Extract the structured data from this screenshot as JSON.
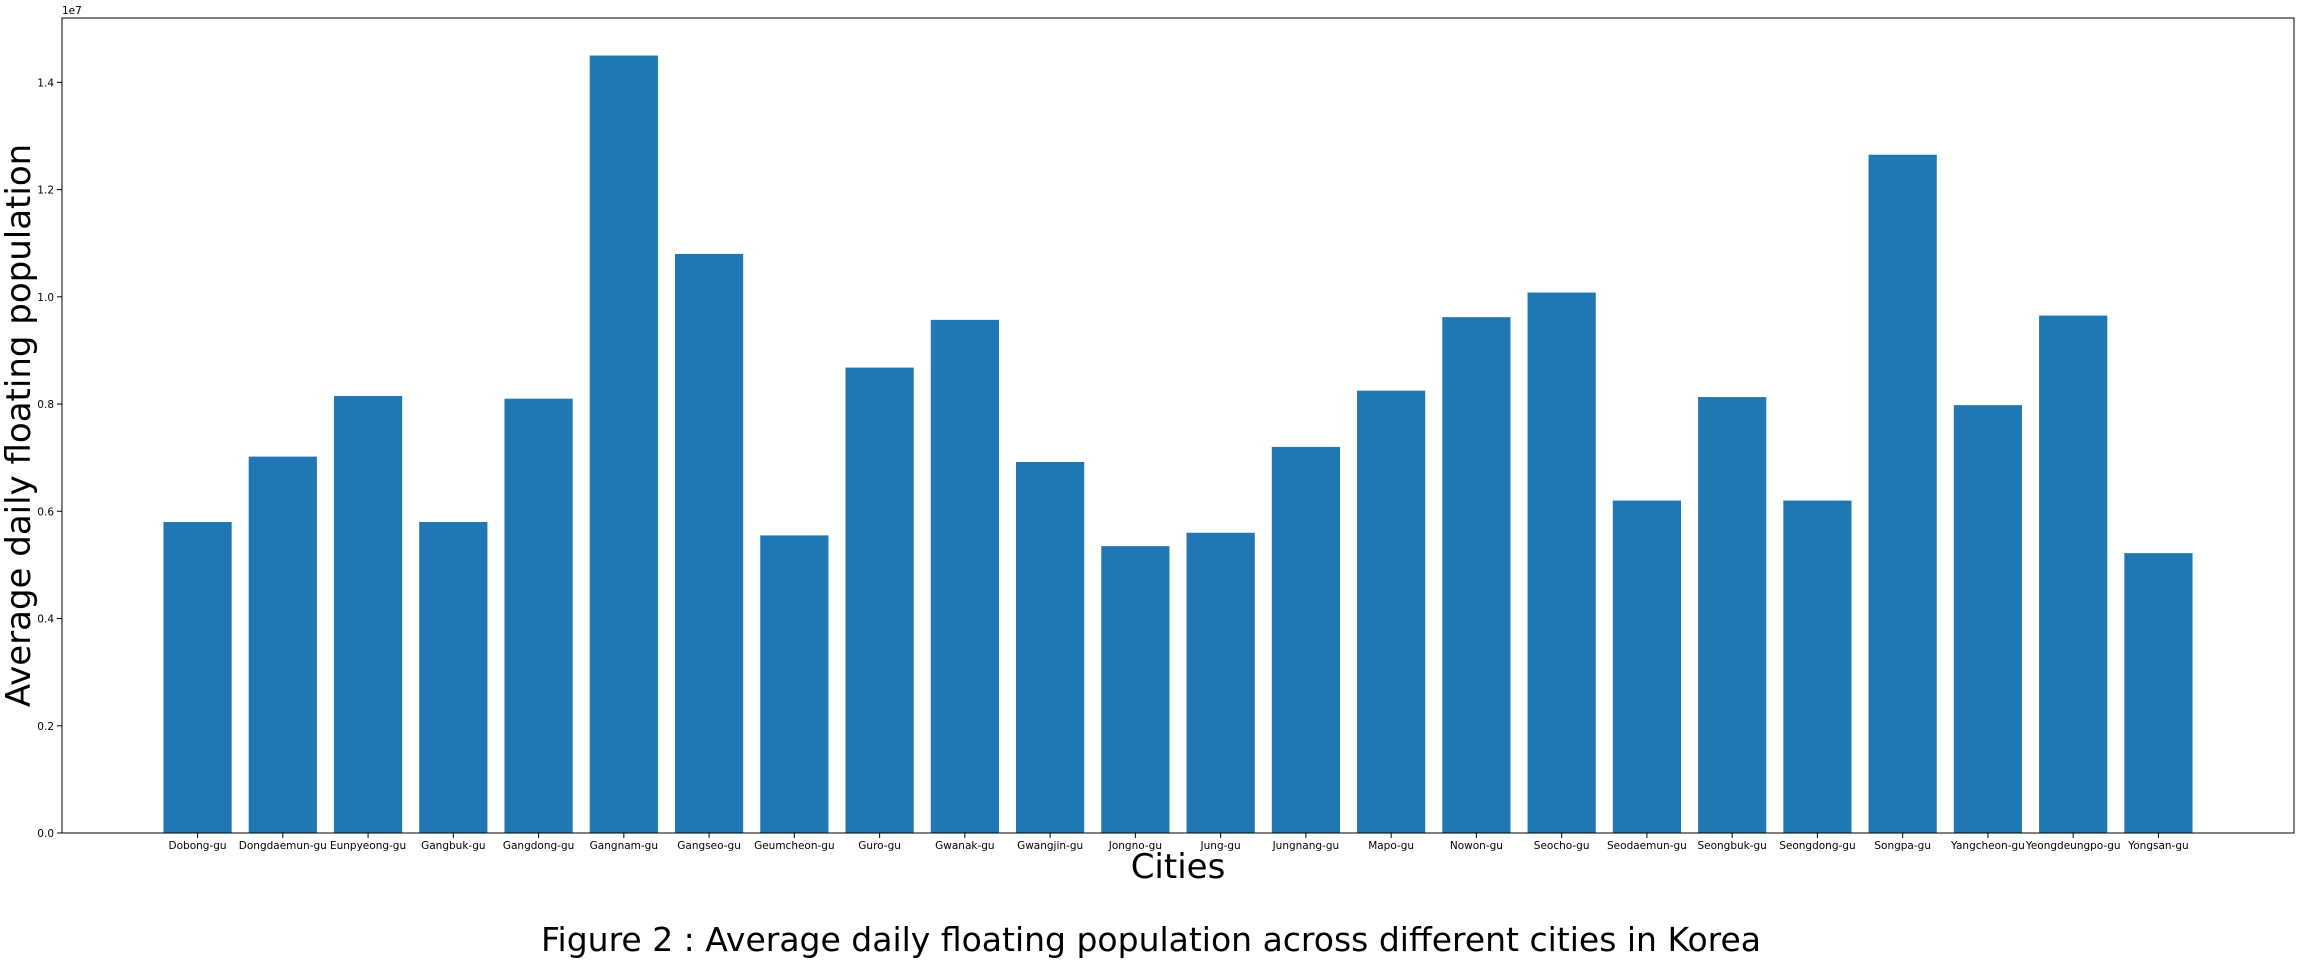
{
  "caption": "Figure 2 : Average daily floating population across different cities in Korea",
  "chart_data": {
    "type": "bar",
    "title": "",
    "xlabel": "Cities",
    "ylabel": "Average daily floating population",
    "y_offset_label": "1e7",
    "y_scale": 10000000,
    "ylim": [
      0,
      15200000
    ],
    "yticks": [
      0,
      2000000,
      4000000,
      6000000,
      8000000,
      10000000,
      12000000,
      14000000
    ],
    "ytick_labels": [
      "0.0",
      "0.2",
      "0.4",
      "0.6",
      "0.8",
      "1.0",
      "1.2",
      "1.4"
    ],
    "grid": false,
    "bar_color": "#1f77b4",
    "categories": [
      "Dobong-gu",
      "Dongdaemun-gu",
      "Eunpyeong-gu",
      "Gangbuk-gu",
      "Gangdong-gu",
      "Gangnam-gu",
      "Gangseo-gu",
      "Geumcheon-gu",
      "Guro-gu",
      "Gwanak-gu",
      "Gwangjin-gu",
      "Jongno-gu",
      "Jung-gu",
      "Jungnang-gu",
      "Mapo-gu",
      "Nowon-gu",
      "Seocho-gu",
      "Seodaemun-gu",
      "Seongbuk-gu",
      "Seongdong-gu",
      "Songpa-gu",
      "Yangcheon-gu",
      "Yeongdeungpo-gu",
      "Yongsan-gu"
    ],
    "values": [
      5800000,
      7020000,
      8150000,
      5800000,
      8100000,
      14500000,
      10800000,
      5550000,
      8680000,
      9570000,
      6920000,
      5350000,
      5600000,
      7200000,
      8250000,
      9620000,
      10080000,
      6200000,
      8130000,
      6200000,
      12650000,
      7980000,
      9650000,
      5220000
    ]
  }
}
